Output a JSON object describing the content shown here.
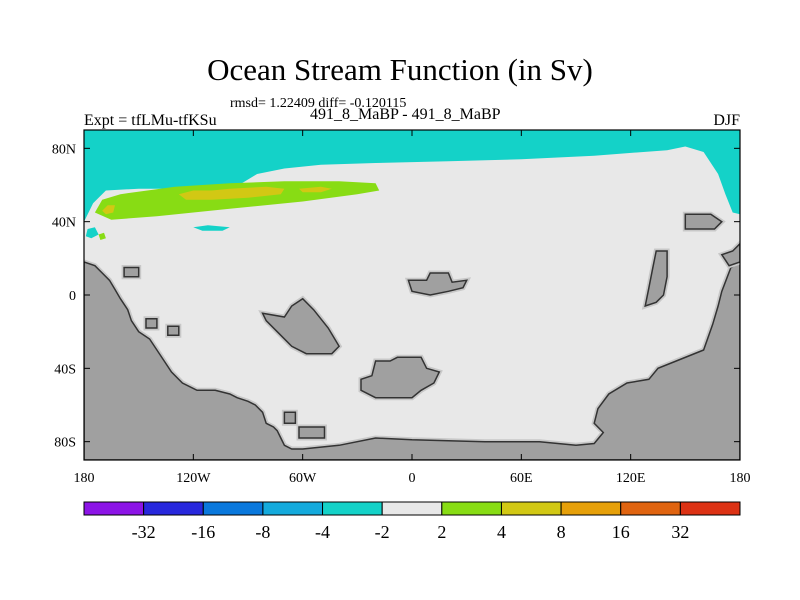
{
  "chart_data": {
    "type": "heatmap",
    "title": "Ocean Stream Function (in Sv)",
    "stats": "rmsd= 1.22409 diff= -0.120115",
    "subtitle": "491_8_MaBP - 491_8_MaBP",
    "left_label": "Expt = tfLMu-tfKSu",
    "right_label": "DJF",
    "x_ticks": [
      {
        "value": -180,
        "label": "180"
      },
      {
        "value": -120,
        "label": "120W"
      },
      {
        "value": -60,
        "label": "60W"
      },
      {
        "value": 0,
        "label": "0"
      },
      {
        "value": 60,
        "label": "60E"
      },
      {
        "value": 120,
        "label": "120E"
      },
      {
        "value": 180,
        "label": "180"
      }
    ],
    "y_ticks": [
      {
        "value": 80,
        "label": "80N"
      },
      {
        "value": 40,
        "label": "40N"
      },
      {
        "value": 0,
        "label": "0"
      },
      {
        "value": -40,
        "label": "40S"
      },
      {
        "value": -80,
        "label": "80S"
      }
    ],
    "xlim": [
      -180,
      180
    ],
    "ylim": [
      -90,
      90
    ],
    "colorbar": {
      "colors": [
        "#8c14e6",
        "#2828dc",
        "#0a78dc",
        "#14aadc",
        "#14d2c8",
        "#e8e8e8",
        "#88dc14",
        "#d2c814",
        "#e6a00a",
        "#e06410",
        "#dc3214"
      ],
      "labels": [
        "-32",
        "-16",
        "-8",
        "-4",
        "-2",
        "2",
        "4",
        "8",
        "16",
        "32"
      ]
    },
    "land_color": "#a0a0a0",
    "regions": [
      {
        "level": "-4",
        "color": "#14aadc",
        "points": [
          [
            -180,
            68
          ],
          [
            -170,
            75
          ],
          [
            -160,
            80
          ],
          [
            -150,
            82
          ],
          [
            -130,
            84
          ],
          [
            -100,
            84
          ],
          [
            -60,
            85
          ],
          [
            -20,
            86
          ],
          [
            10,
            86
          ],
          [
            50,
            85
          ],
          [
            100,
            85
          ],
          [
            140,
            84
          ],
          [
            170,
            84
          ],
          [
            180,
            84
          ],
          [
            180,
            90
          ],
          [
            -180,
            90
          ]
        ]
      },
      {
        "level": "-2",
        "color": "#14d2c8",
        "points": [
          [
            -180,
            40
          ],
          [
            -175,
            50
          ],
          [
            -168,
            57
          ],
          [
            -150,
            58
          ],
          [
            -120,
            58
          ],
          [
            -95,
            60
          ],
          [
            -85,
            66
          ],
          [
            -70,
            69
          ],
          [
            -50,
            71
          ],
          [
            -20,
            72
          ],
          [
            20,
            73
          ],
          [
            60,
            74
          ],
          [
            100,
            76
          ],
          [
            140,
            79
          ],
          [
            150,
            81
          ],
          [
            160,
            78
          ],
          [
            168,
            66
          ],
          [
            172,
            55
          ],
          [
            176,
            45
          ],
          [
            180,
            44
          ],
          [
            180,
            90
          ],
          [
            -180,
            90
          ]
        ]
      },
      {
        "level": "-2",
        "color": "#14d2c8",
        "points": [
          [
            -178,
            36
          ],
          [
            -174,
            37
          ],
          [
            -172,
            33
          ],
          [
            -176,
            31
          ],
          [
            -179,
            32
          ]
        ]
      },
      {
        "level": "-2",
        "color": "#14d2c8",
        "points": [
          [
            -120,
            37
          ],
          [
            -112,
            38
          ],
          [
            -100,
            37
          ],
          [
            -104,
            35
          ],
          [
            -115,
            35
          ]
        ]
      },
      {
        "level": "2",
        "color": "#88dc14",
        "points": [
          [
            -174,
            45
          ],
          [
            -170,
            52
          ],
          [
            -160,
            55
          ],
          [
            -130,
            59
          ],
          [
            -100,
            61
          ],
          [
            -70,
            62
          ],
          [
            -40,
            62
          ],
          [
            -20,
            61
          ],
          [
            -18,
            57
          ],
          [
            -30,
            55
          ],
          [
            -60,
            51
          ],
          [
            -100,
            47
          ],
          [
            -140,
            43
          ],
          [
            -165,
            41
          ]
        ]
      },
      {
        "level": "2",
        "color": "#88dc14",
        "points": [
          [
            -172,
            33
          ],
          [
            -169,
            34
          ],
          [
            -168,
            31
          ],
          [
            -171,
            30
          ]
        ]
      },
      {
        "level": "4",
        "color": "#d2c814",
        "points": [
          [
            -170,
            46
          ],
          [
            -167,
            49
          ],
          [
            -163,
            49
          ],
          [
            -164,
            45
          ],
          [
            -168,
            44
          ]
        ]
      },
      {
        "level": "4",
        "color": "#d2c814",
        "points": [
          [
            -128,
            55
          ],
          [
            -120,
            57
          ],
          [
            -110,
            57
          ],
          [
            -100,
            58
          ],
          [
            -80,
            59
          ],
          [
            -70,
            58
          ],
          [
            -72,
            55
          ],
          [
            -90,
            53
          ],
          [
            -110,
            52
          ],
          [
            -124,
            52
          ]
        ]
      },
      {
        "level": "4",
        "color": "#d2c814",
        "points": [
          [
            -62,
            58
          ],
          [
            -50,
            59
          ],
          [
            -44,
            58
          ],
          [
            -50,
            56
          ],
          [
            -60,
            56
          ]
        ]
      }
    ],
    "land": [
      {
        "name": "western-continent",
        "points": [
          [
            -180,
            18
          ],
          [
            -174,
            16
          ],
          [
            -170,
            12
          ],
          [
            -166,
            8
          ],
          [
            -163,
            3
          ],
          [
            -160,
            -2
          ],
          [
            -156,
            -8
          ],
          [
            -154,
            -14
          ],
          [
            -150,
            -20
          ],
          [
            -144,
            -24
          ],
          [
            -140,
            -30
          ],
          [
            -136,
            -36
          ],
          [
            -132,
            -42
          ],
          [
            -126,
            -48
          ],
          [
            -118,
            -52
          ],
          [
            -108,
            -52
          ],
          [
            -100,
            -54
          ],
          [
            -96,
            -56
          ],
          [
            -90,
            -58
          ],
          [
            -86,
            -60
          ],
          [
            -82,
            -64
          ],
          [
            -80,
            -70
          ],
          [
            -76,
            -72
          ],
          [
            -74,
            -74
          ],
          [
            -72,
            -78
          ],
          [
            -70,
            -82
          ],
          [
            -66,
            -84
          ],
          [
            -60,
            -84
          ],
          [
            -40,
            -82
          ],
          [
            -20,
            -78
          ],
          [
            0,
            -79
          ],
          [
            40,
            -80
          ],
          [
            60,
            -80
          ],
          [
            70,
            -80
          ],
          [
            80,
            -81
          ],
          [
            90,
            -82
          ],
          [
            100,
            -81
          ],
          [
            105,
            -75
          ],
          [
            100,
            -70
          ],
          [
            102,
            -62
          ],
          [
            108,
            -54
          ],
          [
            118,
            -48
          ],
          [
            130,
            -46
          ],
          [
            135,
            -40
          ],
          [
            145,
            -36
          ],
          [
            160,
            -30
          ],
          [
            165,
            -16
          ],
          [
            168,
            -6
          ],
          [
            170,
            2
          ],
          [
            175,
            15
          ],
          [
            180,
            18
          ],
          [
            180,
            -90
          ],
          [
            -180,
            -90
          ]
        ]
      },
      {
        "name": "island-1",
        "points": [
          [
            -158,
            15
          ],
          [
            -150,
            15
          ],
          [
            -150,
            10
          ],
          [
            -158,
            10
          ]
        ]
      },
      {
        "name": "island-2",
        "points": [
          [
            -146,
            -13
          ],
          [
            -140,
            -13
          ],
          [
            -140,
            -18
          ],
          [
            -146,
            -18
          ]
        ]
      },
      {
        "name": "island-3",
        "points": [
          [
            -134,
            -17
          ],
          [
            -128,
            -17
          ],
          [
            -128,
            -22
          ],
          [
            -134,
            -22
          ]
        ]
      },
      {
        "name": "central-island",
        "points": [
          [
            -82,
            -10
          ],
          [
            -70,
            -12
          ],
          [
            -66,
            -6
          ],
          [
            -60,
            -2
          ],
          [
            -54,
            -8
          ],
          [
            -46,
            -18
          ],
          [
            -40,
            -28
          ],
          [
            -44,
            -32
          ],
          [
            -58,
            -32
          ],
          [
            -66,
            -28
          ],
          [
            -72,
            -22
          ],
          [
            -80,
            -14
          ]
        ]
      },
      {
        "name": "north-island",
        "points": [
          [
            -2,
            8
          ],
          [
            8,
            8
          ],
          [
            10,
            12
          ],
          [
            20,
            12
          ],
          [
            22,
            7
          ],
          [
            30,
            8
          ],
          [
            28,
            4
          ],
          [
            20,
            2
          ],
          [
            10,
            0
          ],
          [
            0,
            2
          ]
        ]
      },
      {
        "name": "south-island",
        "points": [
          [
            -20,
            -36
          ],
          [
            -12,
            -36
          ],
          [
            -8,
            -34
          ],
          [
            5,
            -34
          ],
          [
            8,
            -40
          ],
          [
            15,
            -42
          ],
          [
            12,
            -48
          ],
          [
            5,
            -52
          ],
          [
            0,
            -56
          ],
          [
            -10,
            -56
          ],
          [
            -20,
            -56
          ],
          [
            -28,
            -52
          ],
          [
            -28,
            -46
          ],
          [
            -22,
            -44
          ]
        ]
      },
      {
        "name": "small-island-a",
        "points": [
          [
            -70,
            -64
          ],
          [
            -64,
            -64
          ],
          [
            -64,
            -70
          ],
          [
            -70,
            -70
          ]
        ]
      },
      {
        "name": "small-island-b",
        "points": [
          [
            -62,
            -72
          ],
          [
            -48,
            -72
          ],
          [
            -48,
            -78
          ],
          [
            -62,
            -78
          ]
        ]
      },
      {
        "name": "east-ridge",
        "points": [
          [
            134,
            24
          ],
          [
            140,
            24
          ],
          [
            140,
            10
          ],
          [
            138,
            0
          ],
          [
            134,
            -4
          ],
          [
            128,
            -6
          ],
          [
            130,
            4
          ],
          [
            132,
            14
          ]
        ]
      },
      {
        "name": "east-bar",
        "points": [
          [
            150,
            44
          ],
          [
            164,
            44
          ],
          [
            170,
            40
          ],
          [
            166,
            36
          ],
          [
            150,
            36
          ]
        ]
      },
      {
        "name": "east-bump",
        "points": [
          [
            170,
            22
          ],
          [
            176,
            24
          ],
          [
            180,
            28
          ],
          [
            180,
            18
          ],
          [
            174,
            16
          ]
        ]
      }
    ]
  }
}
